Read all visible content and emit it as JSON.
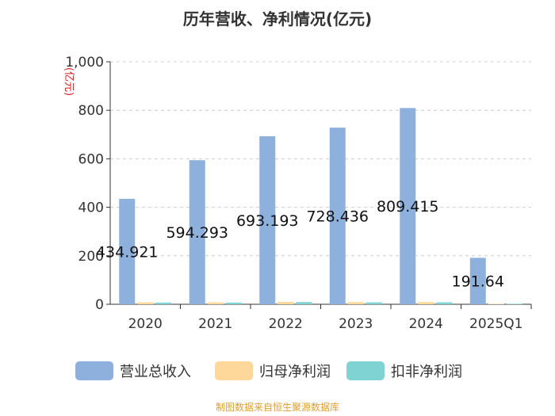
{
  "chart_data": {
    "type": "bar",
    "title": "历年营收、净利情况(亿元)",
    "ylabel": "(亿元)",
    "xlabel": "",
    "ylim": [
      0,
      1000
    ],
    "yticks": [
      "0",
      "200",
      "400",
      "600",
      "800",
      "1,000"
    ],
    "categories": [
      "2020",
      "2021",
      "2022",
      "2023",
      "2024",
      "2025Q1"
    ],
    "series": [
      {
        "name": "营业总收入",
        "color": "#8eb0dc",
        "values": [
          434.921,
          594.293,
          693.193,
          728.436,
          809.415,
          191.64
        ],
        "labels": [
          "434.921",
          "594.293",
          "693.193",
          "728.436",
          "809.415",
          "191.64"
        ]
      },
      {
        "name": "归母净利润",
        "color": "#fdd89a",
        "values": [
          8,
          8,
          10,
          9,
          9,
          2
        ]
      },
      {
        "name": "扣非净利润",
        "color": "#7fd3d3",
        "values": [
          7,
          7,
          9,
          8,
          8,
          2
        ]
      }
    ],
    "grid": true,
    "legend_position": "bottom"
  },
  "source": {
    "text": "制图数据来自恒生聚源数据库",
    "color": "#e0a030"
  }
}
